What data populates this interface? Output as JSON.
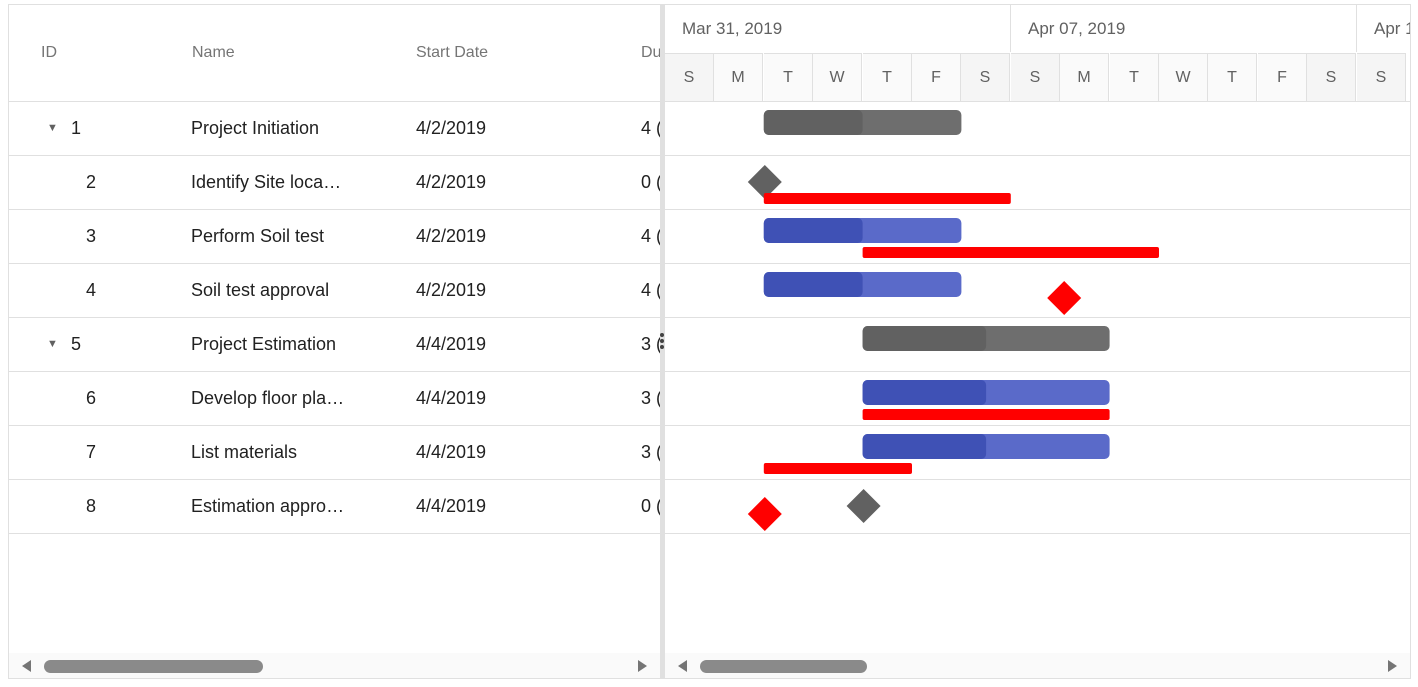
{
  "grid": {
    "columns": [
      "ID",
      "Name",
      "Start Date",
      "Du"
    ],
    "rows": [
      {
        "id": "1",
        "name": "Project Initiation",
        "start": "4/2/2019",
        "dur": "4 (",
        "parent": true
      },
      {
        "id": "2",
        "name": "Identify Site loca…",
        "start": "4/2/2019",
        "dur": "0 (",
        "parent": false
      },
      {
        "id": "3",
        "name": "Perform Soil test",
        "start": "4/2/2019",
        "dur": "4 (",
        "parent": false
      },
      {
        "id": "4",
        "name": "Soil test approval",
        "start": "4/2/2019",
        "dur": "4 (",
        "parent": false
      },
      {
        "id": "5",
        "name": "Project Estimation",
        "start": "4/4/2019",
        "dur": "3 (",
        "parent": true
      },
      {
        "id": "6",
        "name": "Develop floor pla…",
        "start": "4/4/2019",
        "dur": "3 (",
        "parent": false
      },
      {
        "id": "7",
        "name": "List materials",
        "start": "4/4/2019",
        "dur": "3 (",
        "parent": false
      },
      {
        "id": "8",
        "name": "Estimation appro…",
        "start": "4/4/2019",
        "dur": "0 (",
        "parent": false
      }
    ]
  },
  "timeline": {
    "weeks": [
      "Mar 31, 2019",
      "Apr 07, 2019",
      "Apr 1"
    ],
    "days": [
      "S",
      "M",
      "T",
      "W",
      "T",
      "F",
      "S",
      "S",
      "M",
      "T",
      "W",
      "T",
      "F",
      "S",
      "S"
    ]
  },
  "colors": {
    "parent_bar": "#6e6e6e",
    "parent_progress": "#616161",
    "child_bar": "#5a6ac9",
    "child_progress": "#3f51b5",
    "milestone": "#616161",
    "baseline": "#ff0000",
    "grid_line": "#e0e0e0"
  },
  "chart_data": {
    "type": "gantt",
    "tasks": [
      {
        "id": "1",
        "start": "2019-04-02",
        "end": "2019-04-05",
        "progress": 0.5,
        "kind": "parent",
        "baseline_start": "2019-04-02",
        "baseline_end": "2019-04-02",
        "baseline_kind": "none"
      },
      {
        "id": "2",
        "start": "2019-04-02",
        "end": "2019-04-02",
        "progress": 0,
        "kind": "milestone",
        "baseline_start": "2019-04-02",
        "baseline_end": "2019-04-06",
        "baseline_kind": "bar"
      },
      {
        "id": "3",
        "start": "2019-04-02",
        "end": "2019-04-05",
        "progress": 0.5,
        "kind": "task",
        "baseline_start": "2019-04-04",
        "baseline_end": "2019-04-09",
        "baseline_kind": "bar"
      },
      {
        "id": "4",
        "start": "2019-04-02",
        "end": "2019-04-05",
        "progress": 0.5,
        "kind": "task",
        "baseline_start": "2019-04-08",
        "baseline_end": "2019-04-08",
        "baseline_kind": "milestone"
      },
      {
        "id": "5",
        "start": "2019-04-04",
        "end": "2019-04-08",
        "progress": 0.5,
        "kind": "parent",
        "baseline_kind": "none"
      },
      {
        "id": "6",
        "start": "2019-04-04",
        "end": "2019-04-08",
        "progress": 0.5,
        "kind": "task",
        "baseline_start": "2019-04-04",
        "baseline_end": "2019-04-08",
        "baseline_kind": "bar"
      },
      {
        "id": "7",
        "start": "2019-04-04",
        "end": "2019-04-08",
        "progress": 0.5,
        "kind": "task",
        "baseline_start": "2019-04-02",
        "baseline_end": "2019-04-04",
        "baseline_kind": "bar"
      },
      {
        "id": "8",
        "start": "2019-04-04",
        "end": "2019-04-04",
        "progress": 0,
        "kind": "milestone",
        "baseline_start": "2019-04-02",
        "baseline_end": "2019-04-02",
        "baseline_kind": "milestone"
      }
    ],
    "x_range": [
      "2019-03-31",
      "2019-04-14"
    ],
    "grid": true
  }
}
